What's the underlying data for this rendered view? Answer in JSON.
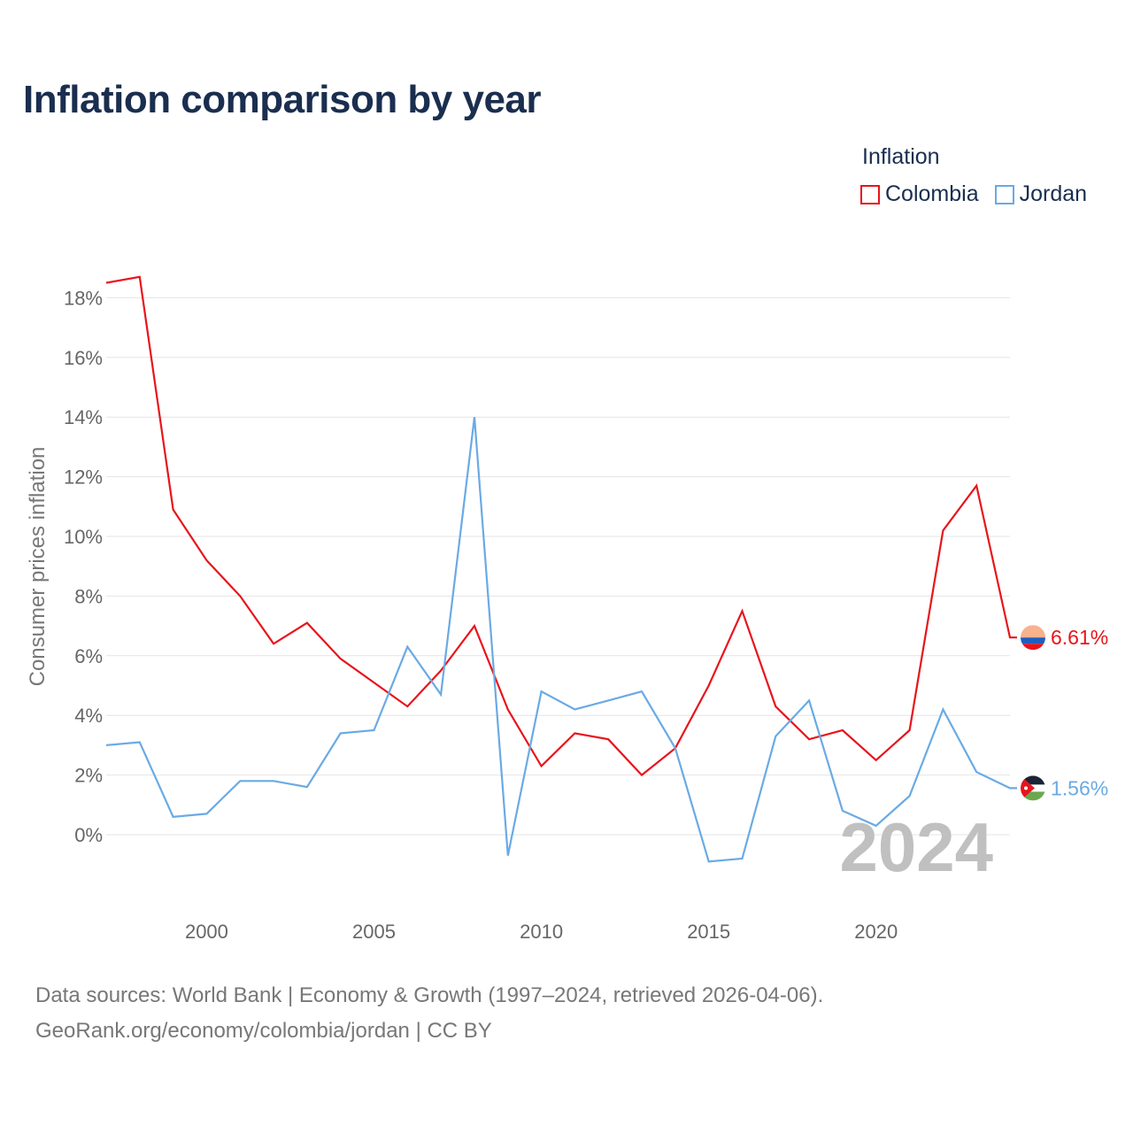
{
  "chart_data": {
    "type": "line",
    "title": "Inflation comparison by year",
    "legend_title": "Inflation",
    "ylabel": "Consumer prices inflation",
    "xlabel": "",
    "x": [
      1997,
      1998,
      1999,
      2000,
      2001,
      2002,
      2003,
      2004,
      2005,
      2006,
      2007,
      2008,
      2009,
      2010,
      2011,
      2012,
      2013,
      2014,
      2015,
      2016,
      2017,
      2018,
      2019,
      2020,
      2021,
      2022,
      2023,
      2024
    ],
    "xlim": [
      1997,
      2024
    ],
    "ylim": [
      -2,
      18.8
    ],
    "yticks": [
      0,
      2,
      4,
      6,
      8,
      10,
      12,
      14,
      16,
      18
    ],
    "ytick_labels": [
      "0%",
      "2%",
      "4%",
      "6%",
      "8%",
      "10%",
      "12%",
      "14%",
      "16%",
      "18%"
    ],
    "xticks": [
      2000,
      2005,
      2010,
      2015,
      2020
    ],
    "xtick_labels": [
      "2000",
      "2005",
      "2010",
      "2015",
      "2020"
    ],
    "highlight_year": "2024",
    "series": [
      {
        "name": "Colombia",
        "color": "#e8141b",
        "end_label": "6.61%",
        "values": [
          18.5,
          18.7,
          10.9,
          9.2,
          8.0,
          6.4,
          7.1,
          5.9,
          5.1,
          4.3,
          5.5,
          7.0,
          4.2,
          2.3,
          3.4,
          3.2,
          2.0,
          2.9,
          5.0,
          7.5,
          4.3,
          3.2,
          3.5,
          2.5,
          3.5,
          10.2,
          11.7,
          6.61
        ]
      },
      {
        "name": "Jordan",
        "color": "#6aaae4",
        "end_label": "1.56%",
        "values": [
          3.0,
          3.1,
          0.6,
          0.7,
          1.8,
          1.8,
          1.6,
          3.4,
          3.5,
          6.3,
          4.7,
          14.0,
          -0.7,
          4.8,
          4.2,
          4.5,
          4.8,
          2.9,
          -0.9,
          -0.8,
          3.3,
          4.5,
          0.8,
          0.3,
          1.3,
          4.2,
          2.1,
          1.56
        ]
      }
    ]
  },
  "footer": {
    "line1": "Data sources: World Bank | Economy & Growth (1997–2024, retrieved 2026-04-06).",
    "line2": "GeoRank.org/economy/colombia/jordan | CC BY"
  },
  "flags": [
    {
      "country": "Colombia",
      "stripes": [
        "#f7b28e",
        "#1f5fbf",
        "#e8141b"
      ]
    },
    {
      "country": "Jordan",
      "stripes": [
        "#1a2438",
        "#ffffff",
        "#6aa84f"
      ],
      "triangle": "#e8141b"
    }
  ]
}
